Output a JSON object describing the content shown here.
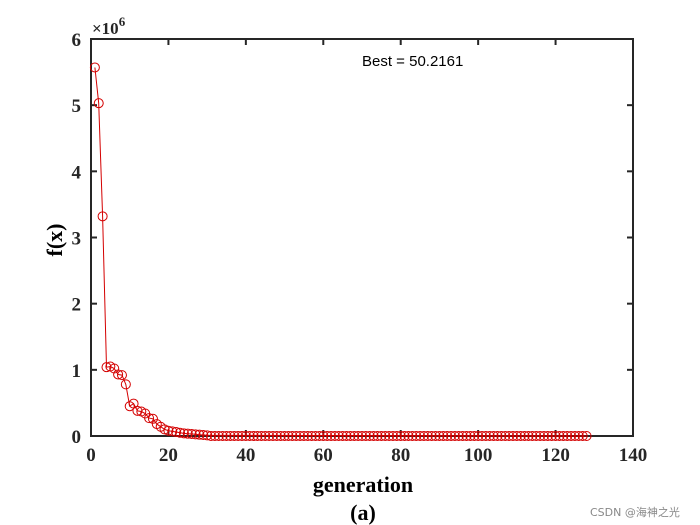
{
  "chart_data": {
    "type": "line",
    "title": "",
    "xlabel": "generation",
    "ylabel": "f(x)",
    "caption": "(a)",
    "annotation": "Best = 50.2161",
    "y_exponent_label": "×10",
    "y_exponent_power": "6",
    "xlim": [
      0,
      140
    ],
    "ylim": [
      0,
      6
    ],
    "xticks": [
      "0",
      "20",
      "40",
      "60",
      "80",
      "100",
      "120",
      "140"
    ],
    "yticks": [
      "0",
      "1",
      "2",
      "3",
      "4",
      "5",
      "6"
    ],
    "series": [
      {
        "name": "f(x)",
        "color": "#d40000",
        "marker": "circle",
        "x": [
          1,
          2,
          3,
          4,
          5,
          6,
          7,
          8,
          9,
          10,
          11,
          12,
          13,
          14,
          15,
          16,
          17,
          18,
          19,
          20,
          21,
          22,
          23,
          24,
          25,
          26,
          27,
          28,
          29,
          30
        ],
        "values": [
          5.57,
          5.03,
          3.32,
          1.04,
          1.05,
          1.02,
          0.93,
          0.92,
          0.78,
          0.45,
          0.49,
          0.38,
          0.37,
          0.34,
          0.27,
          0.26,
          0.18,
          0.14,
          0.1,
          0.08,
          0.07,
          0.06,
          0.05,
          0.04,
          0.035,
          0.03,
          0.025,
          0.02,
          0.015,
          0.01
        ]
      }
    ]
  },
  "watermark": "CSDN @海神之光"
}
